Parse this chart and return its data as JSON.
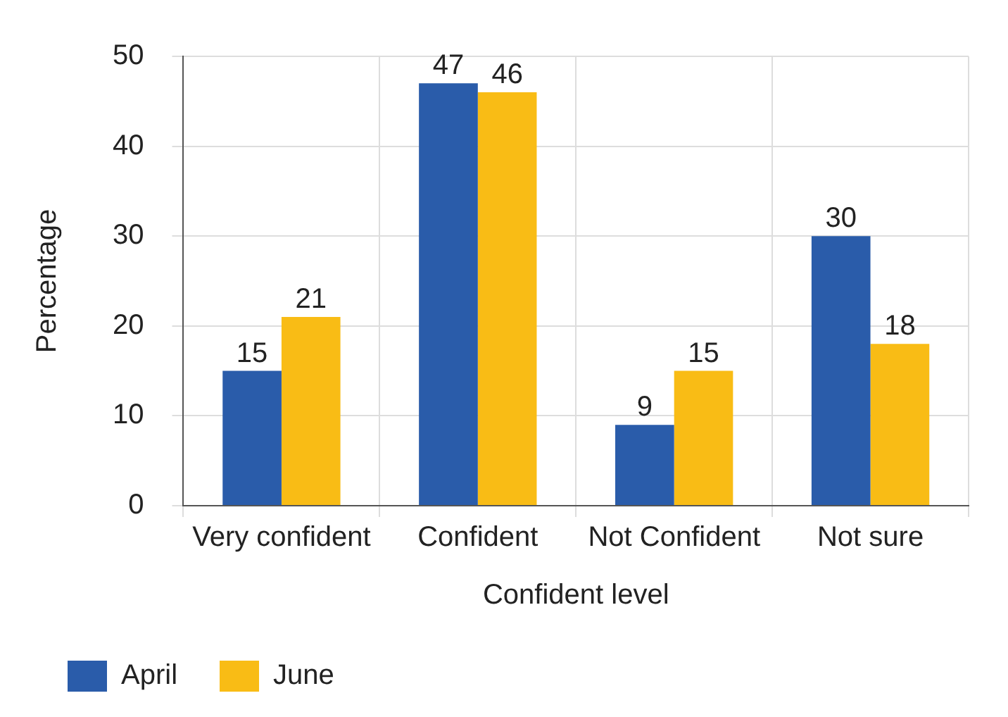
{
  "chart_data": {
    "type": "bar",
    "xlabel": "Confident level",
    "ylabel": "Percentage",
    "categories": [
      "Very confident",
      "Confident",
      "Not Confident",
      "Not sure"
    ],
    "series": [
      {
        "name": "April",
        "color": "#2a5caa",
        "values": [
          15,
          47,
          9,
          30
        ]
      },
      {
        "name": "June",
        "color": "#f9bc15",
        "values": [
          21,
          46,
          15,
          18
        ]
      }
    ],
    "ylim": [
      0,
      50
    ],
    "yticks": [
      0,
      10,
      20,
      30,
      40,
      50
    ],
    "grid": true,
    "legend": "bottom left",
    "data_labels": true
  }
}
